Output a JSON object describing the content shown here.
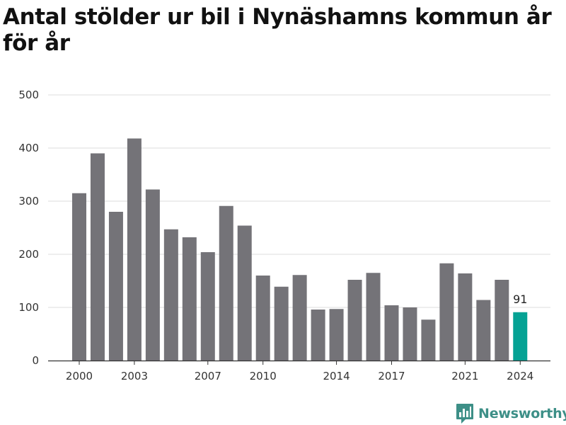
{
  "chart_data": {
    "type": "bar",
    "title": "Antal stölder ur bil i Nynäshamns kommun år för år",
    "x": [
      2000,
      2001,
      2002,
      2003,
      2004,
      2005,
      2006,
      2007,
      2008,
      2009,
      2010,
      2011,
      2012,
      2013,
      2014,
      2015,
      2016,
      2017,
      2018,
      2019,
      2020,
      2021,
      2022,
      2023,
      2024
    ],
    "values": [
      315,
      390,
      280,
      418,
      322,
      247,
      232,
      204,
      291,
      254,
      160,
      139,
      161,
      96,
      97,
      152,
      165,
      104,
      100,
      77,
      183,
      164,
      114,
      152,
      91
    ],
    "x_tick_labels": [
      "2000",
      "2003",
      "2007",
      "2010",
      "2014",
      "2017",
      "2021",
      "2024"
    ],
    "y_ticks": [
      "0",
      "100",
      "200",
      "300",
      "400",
      "500"
    ],
    "ylim": [
      0,
      500
    ],
    "grid": true,
    "highlight": {
      "x": 2024,
      "label": "91"
    },
    "colors": {
      "bar": "#747378",
      "highlight": "#05a294",
      "grid": "#dddddd",
      "axis": "#333333"
    }
  },
  "brand": {
    "name": "Newsworthy",
    "color": "#3d8f87"
  }
}
